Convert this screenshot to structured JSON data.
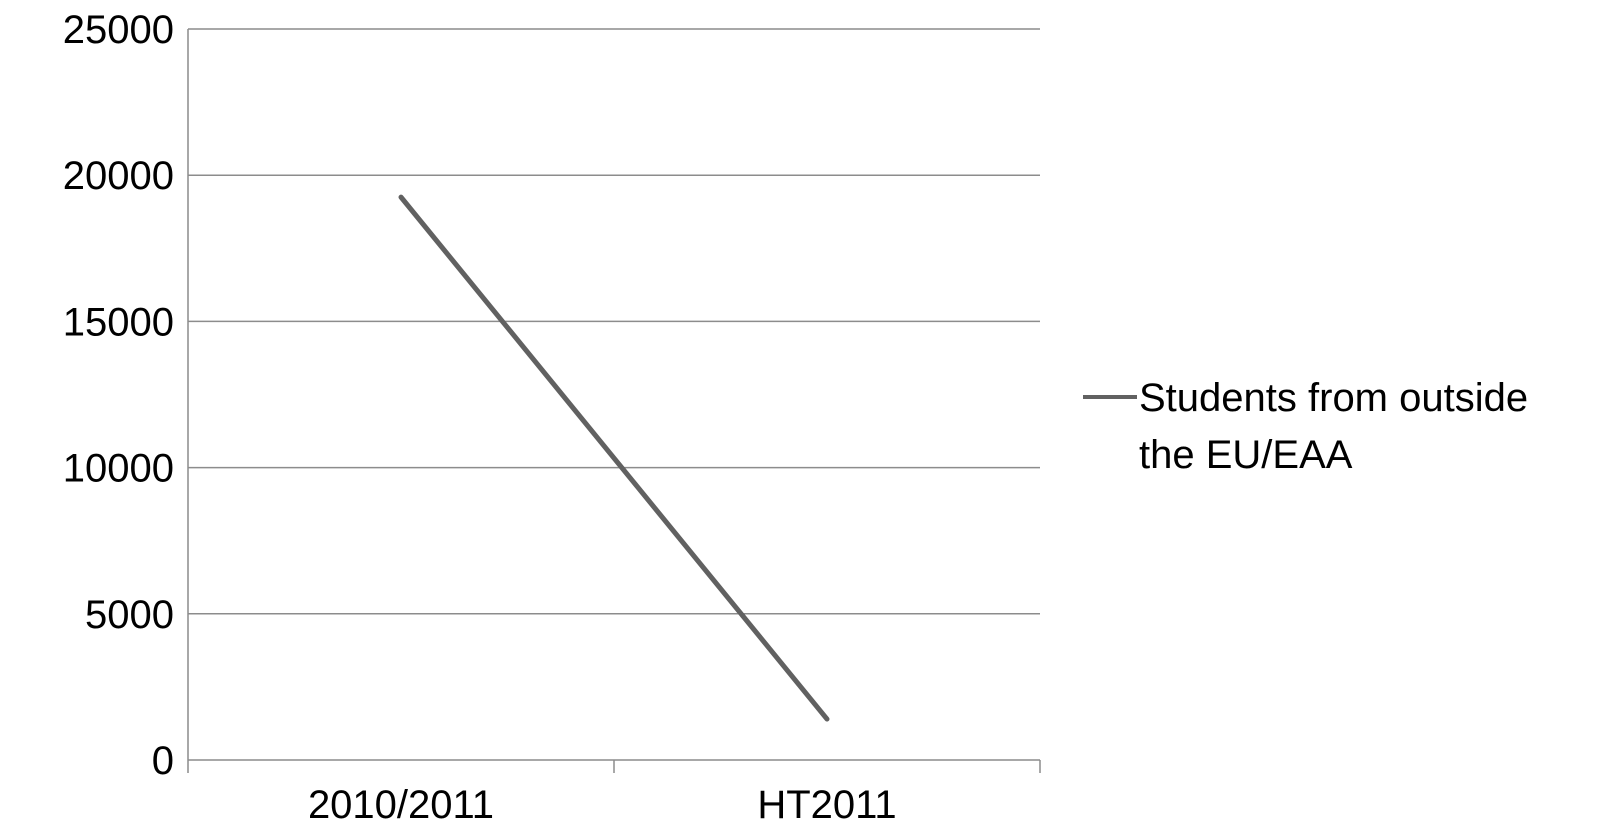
{
  "chart_data": {
    "type": "line",
    "categories": [
      "2010/2011",
      "HT2011"
    ],
    "series": [
      {
        "name": "Students from outside the EU/EAA",
        "values": [
          19250,
          1400
        ],
        "color": "#616161"
      }
    ],
    "ylim": [
      0,
      25000
    ],
    "yticks": [
      0,
      5000,
      10000,
      15000,
      20000,
      25000
    ],
    "grid": true,
    "legend": "right",
    "legend_lines": [
      "Students from outside",
      "the EU/EAA"
    ],
    "colors": {
      "axis": "#8c8c8c",
      "grid": "#8c8c8c",
      "text": "#000000"
    }
  }
}
